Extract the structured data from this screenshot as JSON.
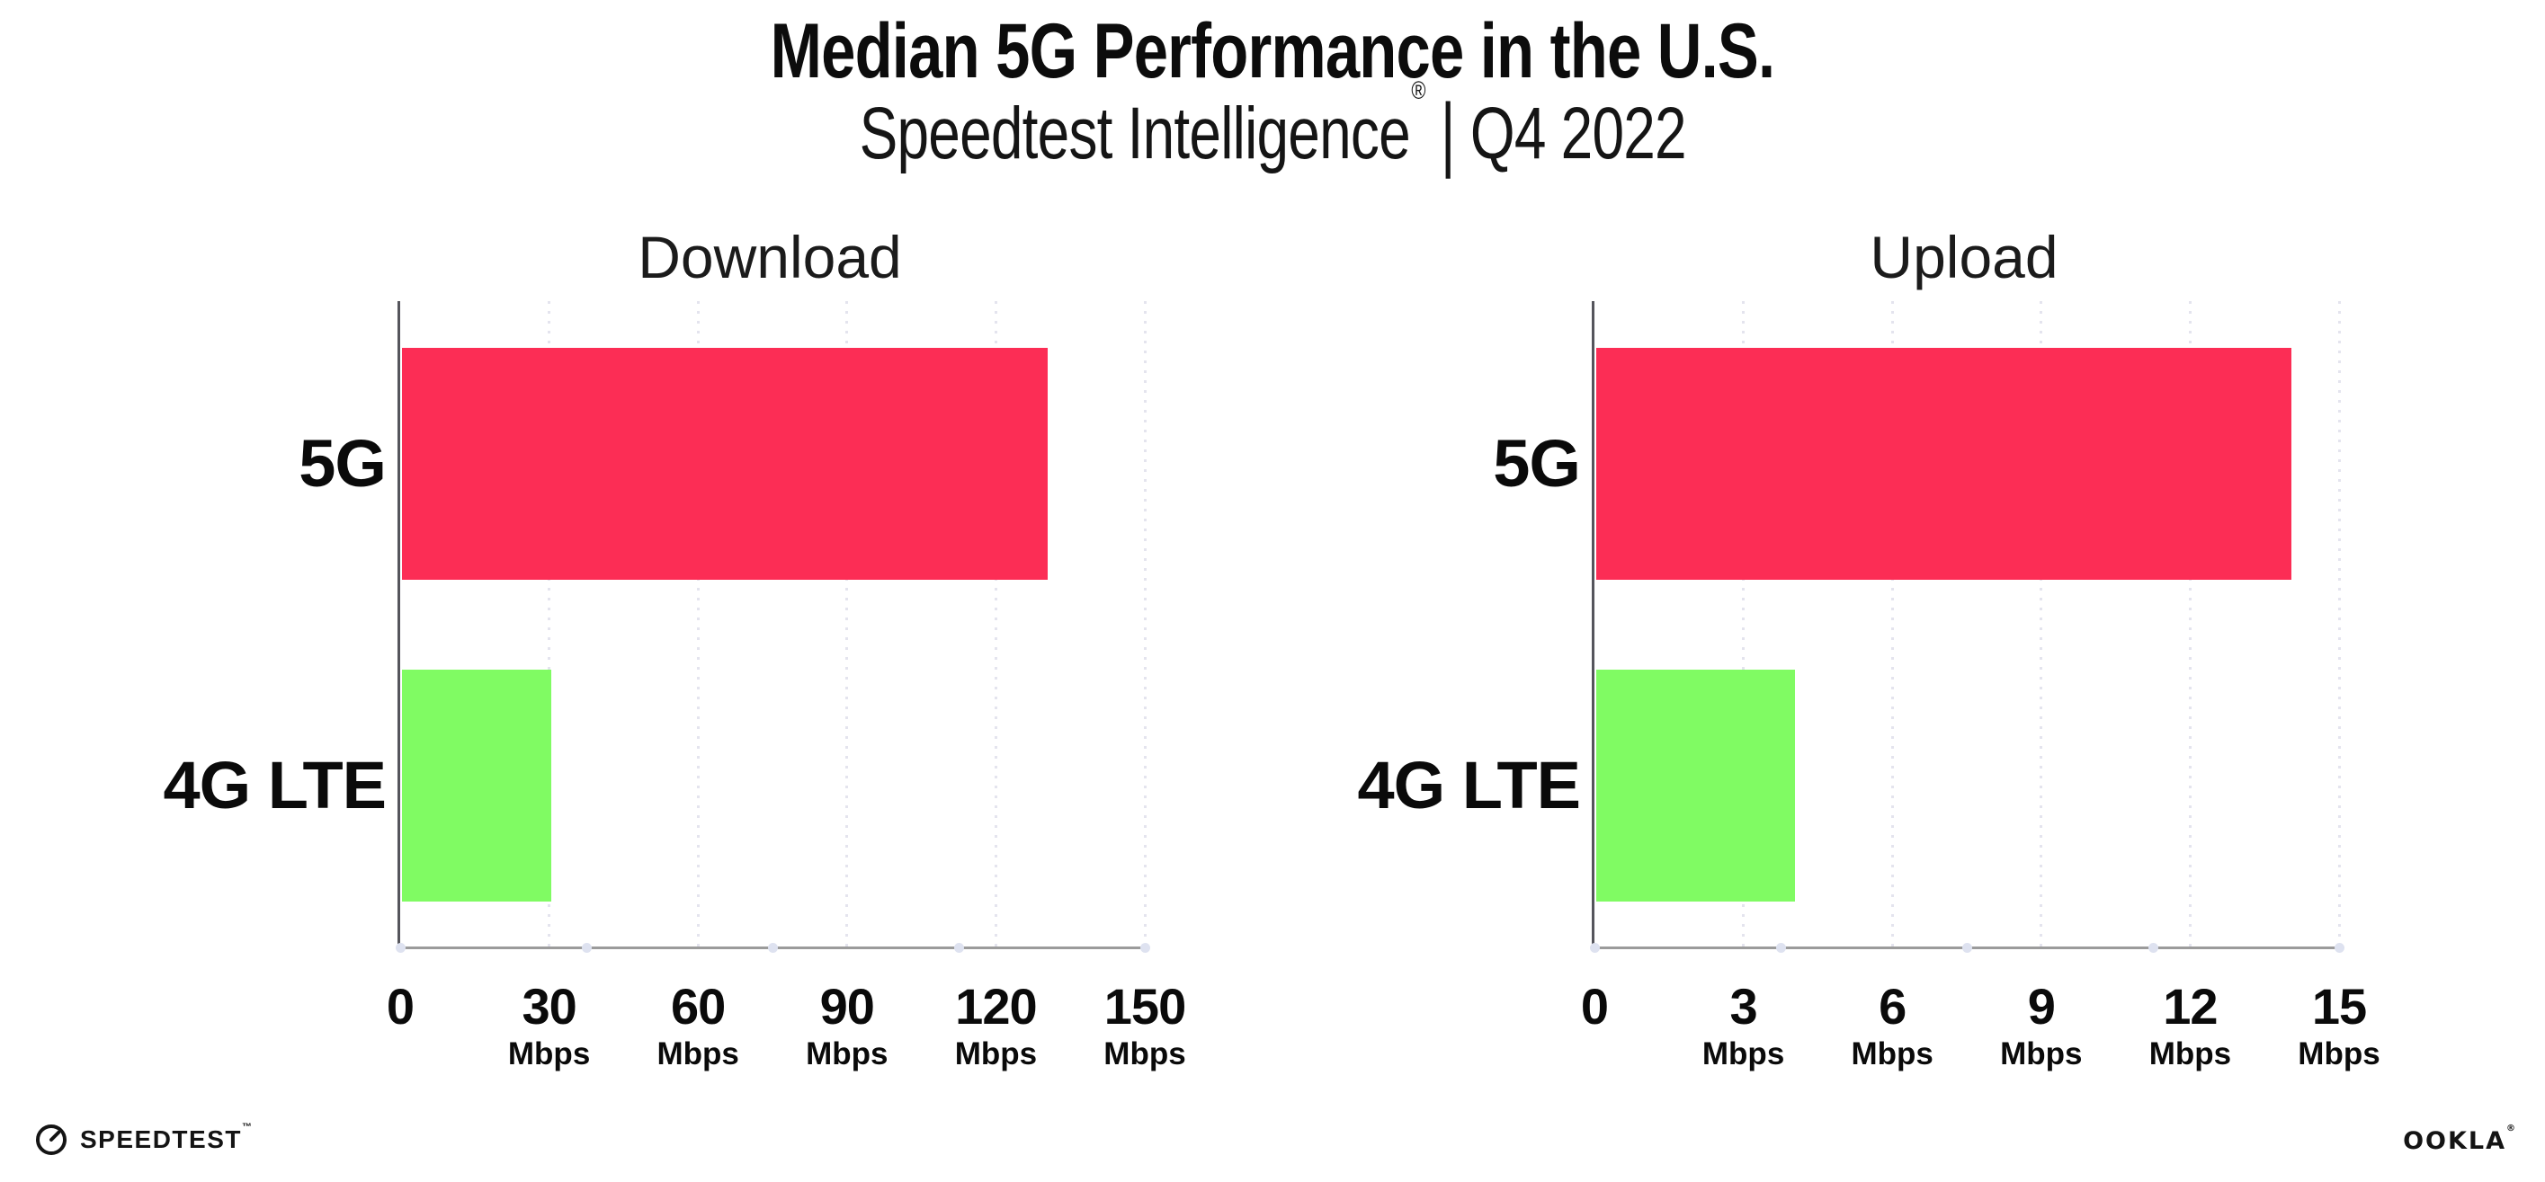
{
  "header": {
    "title": "Median 5G Performance in the U.S.",
    "subtitle_brand": "Speedtest Intelligence",
    "subtitle_reg": "®",
    "subtitle_sep": "|",
    "subtitle_period": "Q4 2022"
  },
  "chart_data": [
    {
      "type": "bar",
      "orientation": "horizontal",
      "title": "Download",
      "categories": [
        "5G",
        "4G LTE"
      ],
      "values": [
        130,
        30
      ],
      "unit": "Mbps",
      "xlim": [
        0,
        150
      ],
      "xticks": [
        0,
        30,
        60,
        90,
        120,
        150
      ],
      "tick_unit_label": "Mbps",
      "grid": "vertical-dotted",
      "legend": "none",
      "series_colors": {
        "5G": "#fc2d55",
        "4G LTE": "#80fb63"
      }
    },
    {
      "type": "bar",
      "orientation": "horizontal",
      "title": "Upload",
      "categories": [
        "5G",
        "4G LTE"
      ],
      "values": [
        14,
        4
      ],
      "unit": "Mbps",
      "xlim": [
        0,
        15
      ],
      "xticks": [
        0,
        3,
        6,
        9,
        12,
        15
      ],
      "tick_unit_label": "Mbps",
      "grid": "vertical-dotted",
      "legend": "none",
      "series_colors": {
        "5G": "#fc2d55",
        "4G LTE": "#80fb63"
      }
    }
  ],
  "footer": {
    "speedtest_label": "SPEEDTEST",
    "speedtest_mark": "™",
    "ookla_label": "OOKLA",
    "ookla_mark": "®"
  },
  "colors": {
    "bar_5g": "#fc2d55",
    "bar_4g_lte": "#80fb63",
    "x_axis": "#9b9b9b",
    "y_axis": "#55555c",
    "gridline": "#e4e4ee",
    "axis_marker_dot": "#dee2f0",
    "text": "#0c0c0c",
    "background": "#ffffff"
  }
}
